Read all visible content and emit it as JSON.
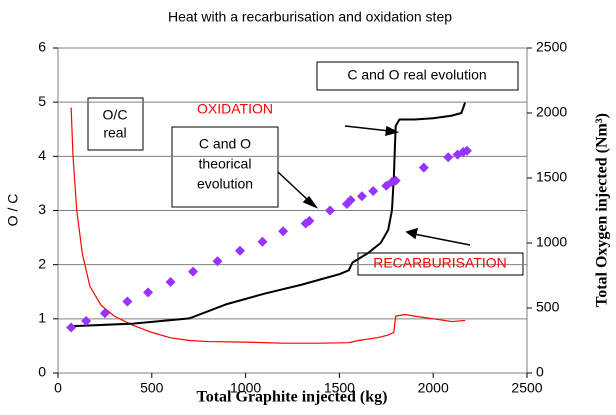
{
  "chart_data": {
    "type": "line",
    "title": "Heat with a recarburisation and oxidation step",
    "xlabel": "Total Graphite injected (kg)",
    "ylabel": "O / C",
    "y2label": "Total Oxygen injected (Nm³)",
    "xlim": [
      0,
      2500
    ],
    "xticks": [
      0,
      500,
      1000,
      1500,
      2000,
      2500
    ],
    "ylim": [
      0,
      6
    ],
    "yticks": [
      0,
      1,
      2,
      3,
      4,
      5,
      6
    ],
    "y2lim": [
      0,
      2500
    ],
    "y2ticks": [
      0,
      500,
      1000,
      1500,
      2000,
      2500
    ],
    "grid": true,
    "series": [
      {
        "color": "#ff0000",
        "marker": "none",
        "x": [
          70,
          80,
          100,
          130,
          170,
          230,
          300,
          400,
          500,
          600,
          700,
          800,
          1000,
          1200,
          1400,
          1550,
          1600,
          1700,
          1760,
          1790,
          1800,
          1850,
          1900,
          2000,
          2100,
          2170
        ],
        "values": [
          4.9,
          4.0,
          3.0,
          2.2,
          1.6,
          1.25,
          1.05,
          0.88,
          0.75,
          0.65,
          0.6,
          0.58,
          0.57,
          0.55,
          0.55,
          0.56,
          0.6,
          0.65,
          0.7,
          0.75,
          1.05,
          1.08,
          1.05,
          1.0,
          0.95,
          0.97
        ]
      },
      {
        "color": "#000000",
        "marker": "none",
        "axis": "y2",
        "x": [
          70,
          400,
          700,
          900,
          1100,
          1300,
          1400,
          1500,
          1550,
          1570,
          1650,
          1720,
          1760,
          1780,
          1790,
          1800,
          1820,
          1900,
          2000,
          2100,
          2150,
          2170
        ],
        "values": [
          360,
          380,
          420,
          530,
          610,
          680,
          720,
          760,
          790,
          850,
          920,
          1000,
          1100,
          1250,
          1500,
          1900,
          1950,
          1950,
          1960,
          1980,
          2000,
          2080
        ]
      },
      {
        "color": "#9933ff",
        "marker": "diamond",
        "axis": "y2",
        "x": [
          70,
          150,
          250,
          370,
          480,
          600,
          720,
          850,
          970,
          1090,
          1200,
          1320,
          1340,
          1450,
          1540,
          1560,
          1620,
          1680,
          1750,
          1780,
          1800,
          1950,
          2080,
          2130,
          2160,
          2180
        ],
        "values": [
          350,
          400,
          460,
          550,
          620,
          700,
          780,
          860,
          940,
          1010,
          1090,
          1150,
          1170,
          1250,
          1300,
          1330,
          1360,
          1400,
          1440,
          1470,
          1480,
          1580,
          1660,
          1680,
          1700,
          1710
        ]
      }
    ],
    "annotations": [
      {
        "lines": [
          "O/C",
          "real"
        ],
        "color": "#000000"
      },
      {
        "lines": [
          "OXIDATION"
        ],
        "color": "#ff0000"
      },
      {
        "lines": [
          "C and O",
          "theorical",
          "evolution"
        ],
        "color": "#000000"
      },
      {
        "lines": [
          "C and O real evolution"
        ],
        "color": "#000000"
      },
      {
        "lines": [
          "RECARBURISATION"
        ],
        "color": "#ff0000"
      }
    ]
  }
}
